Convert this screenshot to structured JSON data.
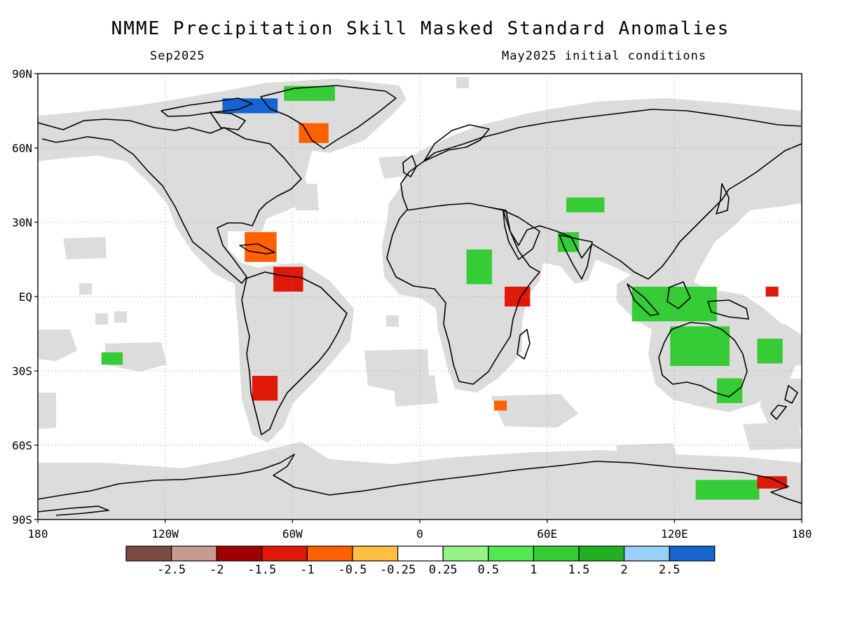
{
  "title": "NMME Precipitation Skill Masked Standard Anomalies",
  "valid_month": "Sep2025",
  "initial_conditions": "May2025 initial conditions",
  "lat_labels": [
    "90N",
    "60N",
    "30N",
    "EQ",
    "30S",
    "60S",
    "90S"
  ],
  "lat_values": [
    90,
    60,
    30,
    0,
    -30,
    -60,
    -90
  ],
  "lon_labels": [
    "180",
    "120W",
    "60W",
    "0",
    "60E",
    "120E",
    "180"
  ],
  "lon_values": [
    -180,
    -120,
    -60,
    0,
    60,
    120,
    180
  ],
  "colorbar": {
    "colors": [
      "#7b4a42",
      "#c99b90",
      "#a00000",
      "#e01808",
      "#ff6000",
      "#ffc040",
      "#ffffff",
      "#98f088",
      "#52e852",
      "#36cc36",
      "#22b022",
      "#98d0f8",
      "#1464d2"
    ],
    "labels": [
      "-2.5",
      "-2",
      "-1.5",
      "-1",
      "-0.5",
      "-0.25",
      "0.25",
      "0.5",
      "1",
      "1.5",
      "2",
      "2.5"
    ]
  },
  "colors": {
    "skill_mask_gray": "#dcdcdc",
    "grid_line": "#9a9a9a"
  },
  "anomaly_regions": [
    {
      "lon": -75,
      "lat": 20,
      "w": 15,
      "h": 12,
      "color": "#ff6000"
    },
    {
      "lon": -62,
      "lat": 7,
      "w": 14,
      "h": 10,
      "color": "#e01808"
    },
    {
      "lon": -73,
      "lat": -37,
      "w": 12,
      "h": 10,
      "color": "#e01808"
    },
    {
      "lon": 46,
      "lat": 0,
      "w": 12,
      "h": 8,
      "color": "#e01808"
    },
    {
      "lon": 28,
      "lat": 12,
      "w": 12,
      "h": 14,
      "color": "#36cc36"
    },
    {
      "lon": 120,
      "lat": -3,
      "w": 40,
      "h": 14,
      "color": "#36cc36"
    },
    {
      "lon": 132,
      "lat": -20,
      "w": 28,
      "h": 16,
      "color": "#36cc36"
    },
    {
      "lon": 146,
      "lat": -38,
      "w": 12,
      "h": 10,
      "color": "#36cc36"
    },
    {
      "lon": 70,
      "lat": 22,
      "w": 10,
      "h": 8,
      "color": "#36cc36"
    },
    {
      "lon": 165,
      "lat": -22,
      "w": 12,
      "h": 10,
      "color": "#36cc36"
    },
    {
      "lon": 145,
      "lat": -78,
      "w": 30,
      "h": 8,
      "color": "#36cc36"
    },
    {
      "lon": 166,
      "lat": -75,
      "w": 14,
      "h": 5,
      "color": "#e01808"
    },
    {
      "lon": -50,
      "lat": 66,
      "w": 14,
      "h": 8,
      "color": "#ff6000"
    },
    {
      "lon": -52,
      "lat": 82,
      "w": 24,
      "h": 6,
      "color": "#36cc36"
    },
    {
      "lon": -80,
      "lat": 77,
      "w": 26,
      "h": 6,
      "color": "#1464d2"
    },
    {
      "lon": 78,
      "lat": 37,
      "w": 18,
      "h": 6,
      "color": "#36cc36"
    },
    {
      "lon": -145,
      "lat": -25,
      "w": 10,
      "h": 5,
      "color": "#36cc36"
    },
    {
      "lon": 38,
      "lat": -44,
      "w": 6,
      "h": 4,
      "color": "#ff6000"
    },
    {
      "lon": 166,
      "lat": 2,
      "w": 6,
      "h": 4,
      "color": "#e01808"
    }
  ]
}
